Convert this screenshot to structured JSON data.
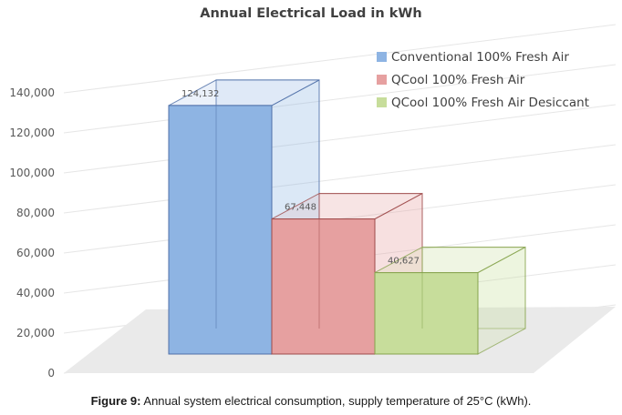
{
  "chart_data": {
    "type": "bar",
    "title": "Annual Electrical Load in kWh",
    "categories": [
      "Conventional 100% Fresh Air",
      "QCool 100% Fresh Air",
      "QCool 100% Fresh Air Desiccant"
    ],
    "values": [
      124132,
      67448,
      40627
    ],
    "data_labels": [
      "124,132",
      "67,448",
      "40,627"
    ],
    "colors": [
      "#8eb4e3",
      "#e6a0a0",
      "#c7dd9b"
    ],
    "y_ticks": [
      "0",
      "20,000",
      "40,000",
      "60,000",
      "80,000",
      "100,000",
      "120,000",
      "140,000"
    ],
    "ylim": [
      0,
      140000
    ],
    "legend": [
      "Conventional 100% Fresh Air",
      "QCool 100% Fresh Air",
      "QCool 100% Fresh Air Desiccant"
    ],
    "legend_position": "top-right",
    "style": "3d-column",
    "grid": true
  },
  "caption": {
    "label": "Figure 9:",
    "text": " Annual system electrical consumption, supply temperature of 25°C (kWh)."
  }
}
